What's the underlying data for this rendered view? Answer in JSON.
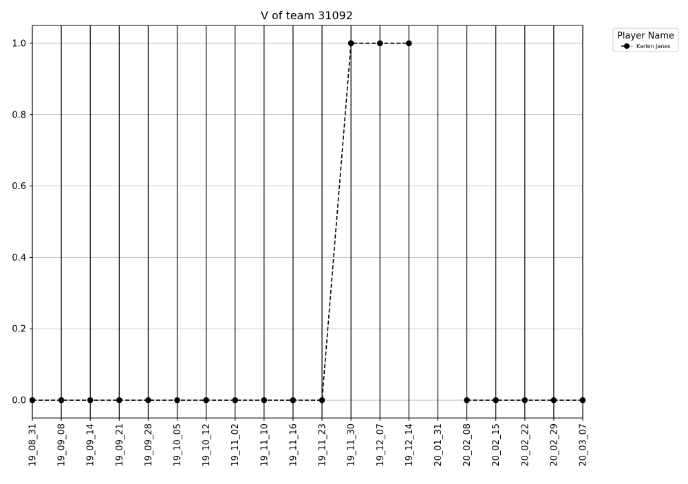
{
  "chart_data": {
    "type": "line",
    "title": "V of team 31092",
    "xlabel": "",
    "ylabel": "",
    "categories": [
      "19_08_31",
      "19_09_08",
      "19_09_14",
      "19_09_21",
      "19_09_28",
      "19_10_05",
      "19_10_12",
      "19_11_02",
      "19_11_10",
      "19_11_16",
      "19_11_23",
      "19_11_30",
      "19_12_07",
      "19_12_14",
      "20_01_31",
      "20_02_08",
      "20_02_15",
      "20_02_22",
      "20_02_29",
      "20_03_07"
    ],
    "series": [
      {
        "name": "Karlen Janes",
        "color": "#000000",
        "line_style": "dashed",
        "marker": "circle",
        "values": [
          0,
          0,
          0,
          0,
          0,
          0,
          0,
          0,
          0,
          0,
          0,
          1,
          1,
          1,
          null,
          0,
          0,
          0,
          0,
          0
        ]
      }
    ],
    "ylim": [
      -0.05,
      1.05
    ],
    "yticks": [
      "0.0",
      "0.2",
      "0.4",
      "0.6",
      "0.8",
      "1.0"
    ],
    "grid_y": true,
    "vertical_lines_at_categories": true,
    "legend": {
      "title": "Player Name",
      "placement": "outside-right-top"
    }
  }
}
